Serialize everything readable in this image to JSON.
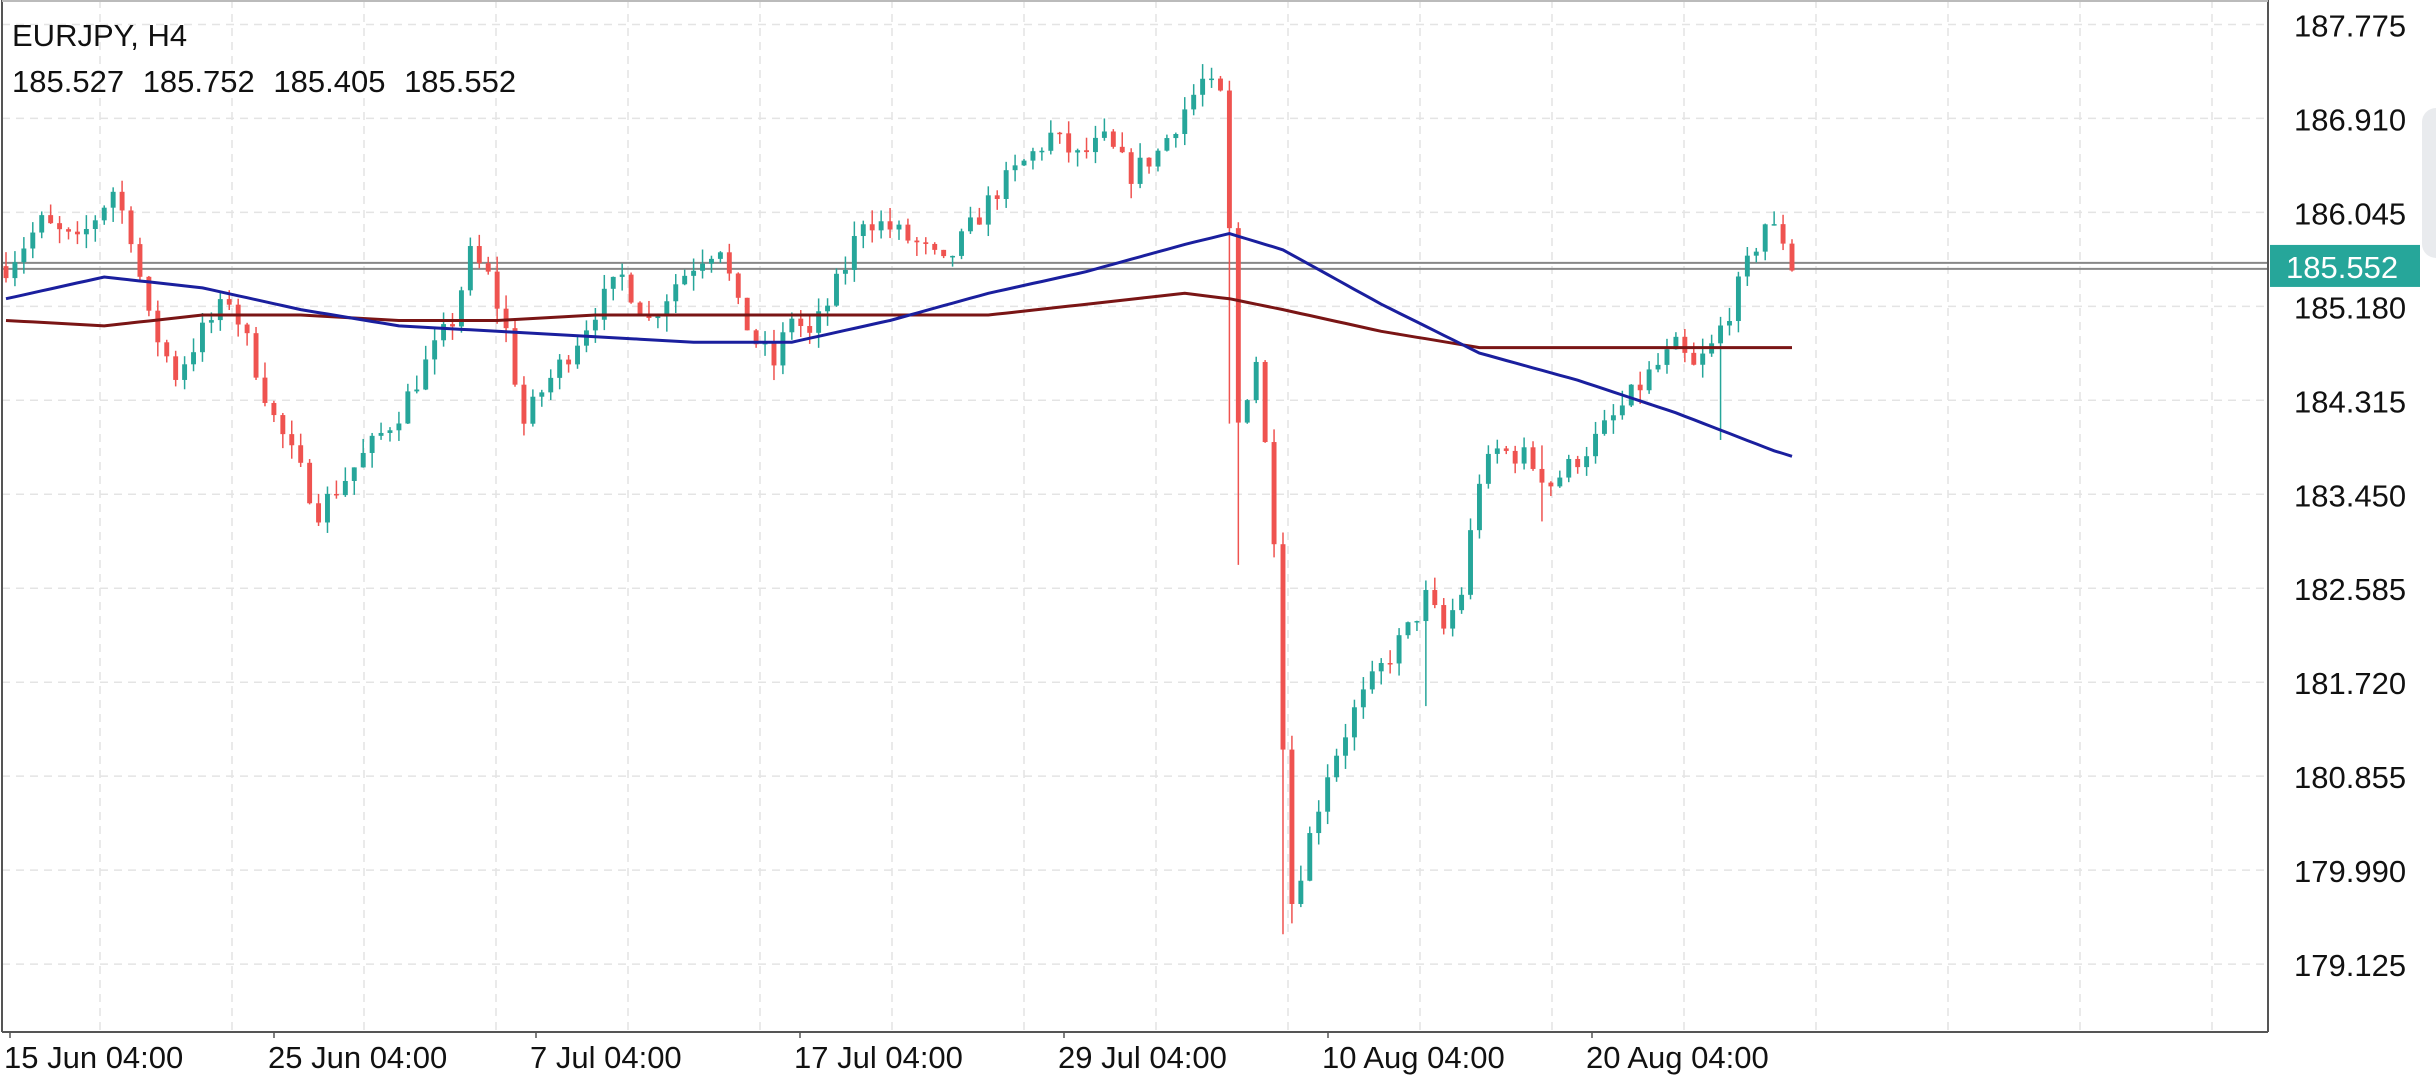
{
  "header": {
    "symbol": "EURJPY, H4",
    "ohlc": {
      "open": "185.527",
      "high": "185.752",
      "low": "185.405",
      "close": "185.552"
    }
  },
  "current_price": {
    "label": "185.552",
    "value": 185.552,
    "color": "#26a69a"
  },
  "colors": {
    "bull": "#26a69a",
    "bear": "#ef5350",
    "ma_fast": "#1a1f9e",
    "ma_slow": "#7a1515",
    "grid": "#e4e4e4",
    "axis": "#555555",
    "price_line": "#888888"
  },
  "chart_data": {
    "type": "candlestick",
    "symbol": "EURJPY",
    "timeframe": "H4",
    "y_range": [
      178.5,
      188.0
    ],
    "y_ticks": [
      187.775,
      186.91,
      186.045,
      185.18,
      184.315,
      183.45,
      182.585,
      181.72,
      180.855,
      179.99,
      179.125
    ],
    "y_tick_labels": [
      "187.775",
      "186.910",
      "186.045",
      "185.180",
      "184.315",
      "183.450",
      "182.585",
      "181.720",
      "180.855",
      "179.990",
      "179.125"
    ],
    "x_tick_labels": [
      "15 Jun 04:00",
      "25 Jun 04:00",
      "7 Jul 04:00",
      "17 Jul 04:00",
      "29 Jul 04:00",
      "10 Aug 04:00",
      "20 Aug 04:00"
    ],
    "price_path": [
      [
        0,
        185.55
      ],
      [
        4,
        185.95
      ],
      [
        8,
        185.75
      ],
      [
        12,
        186.25
      ],
      [
        14,
        185.85
      ],
      [
        16,
        185.05
      ],
      [
        19,
        184.55
      ],
      [
        22,
        184.95
      ],
      [
        25,
        185.25
      ],
      [
        27,
        184.85
      ],
      [
        30,
        184.15
      ],
      [
        33,
        183.65
      ],
      [
        35,
        183.3
      ],
      [
        38,
        183.6
      ],
      [
        41,
        183.9
      ],
      [
        44,
        184.2
      ],
      [
        47,
        184.65
      ],
      [
        50,
        185.05
      ],
      [
        52,
        185.65
      ],
      [
        54,
        185.45
      ],
      [
        56,
        184.95
      ],
      [
        58,
        184.1
      ],
      [
        60,
        184.4
      ],
      [
        63,
        184.75
      ],
      [
        66,
        185.15
      ],
      [
        69,
        185.45
      ],
      [
        72,
        185.05
      ],
      [
        75,
        185.4
      ],
      [
        78,
        185.65
      ],
      [
        80,
        185.75
      ],
      [
        82,
        185.15
      ],
      [
        84,
        184.85
      ],
      [
        86,
        184.65
      ],
      [
        88,
        185.1
      ],
      [
        90,
        184.9
      ],
      [
        92,
        185.2
      ],
      [
        94,
        185.55
      ],
      [
        96,
        186.0
      ],
      [
        99,
        185.9
      ],
      [
        102,
        185.75
      ],
      [
        105,
        185.55
      ],
      [
        108,
        185.9
      ],
      [
        111,
        186.25
      ],
      [
        114,
        186.5
      ],
      [
        117,
        186.75
      ],
      [
        120,
        186.55
      ],
      [
        123,
        186.7
      ],
      [
        126,
        186.4
      ],
      [
        129,
        186.6
      ],
      [
        132,
        187.0
      ],
      [
        134,
        187.25
      ],
      [
        136,
        187.1
      ],
      [
        137,
        185.85
      ],
      [
        138,
        184.1
      ],
      [
        140,
        184.7
      ],
      [
        142,
        183.1
      ],
      [
        143,
        181.2
      ],
      [
        144,
        179.7
      ],
      [
        146,
        180.3
      ],
      [
        148,
        180.9
      ],
      [
        151,
        181.45
      ],
      [
        154,
        181.85
      ],
      [
        157,
        182.2
      ],
      [
        159,
        182.5
      ],
      [
        161,
        182.2
      ],
      [
        163,
        182.55
      ],
      [
        165,
        183.6
      ],
      [
        167,
        183.85
      ],
      [
        170,
        183.8
      ],
      [
        173,
        183.55
      ],
      [
        175,
        183.7
      ],
      [
        178,
        183.95
      ],
      [
        181,
        184.25
      ],
      [
        184,
        184.55
      ],
      [
        187,
        184.8
      ],
      [
        189,
        184.6
      ],
      [
        191,
        184.8
      ],
      [
        193,
        185.15
      ],
      [
        195,
        185.55
      ],
      [
        197,
        185.95
      ],
      [
        199,
        185.8
      ],
      [
        200,
        185.55
      ]
    ],
    "spikes": [
      [
        137,
        184.1,
        185.9
      ],
      [
        138,
        182.8,
        184.9
      ],
      [
        143,
        179.4,
        181.3
      ],
      [
        144,
        179.5,
        180.4
      ],
      [
        159,
        181.5,
        182.6
      ],
      [
        192,
        183.95,
        184.9
      ],
      [
        172,
        183.2,
        183.9
      ]
    ],
    "ma_fast": [
      [
        0,
        185.25
      ],
      [
        11,
        185.45
      ],
      [
        22,
        185.35
      ],
      [
        33,
        185.15
      ],
      [
        44,
        185.0
      ],
      [
        55,
        184.95
      ],
      [
        66,
        184.9
      ],
      [
        77,
        184.85
      ],
      [
        88,
        184.85
      ],
      [
        99,
        185.05
      ],
      [
        110,
        185.3
      ],
      [
        121,
        185.5
      ],
      [
        132,
        185.75
      ],
      [
        137,
        185.85
      ],
      [
        143,
        185.7
      ],
      [
        154,
        185.2
      ],
      [
        165,
        184.75
      ],
      [
        176,
        184.5
      ],
      [
        187,
        184.2
      ],
      [
        198,
        183.85
      ],
      [
        200,
        183.8
      ]
    ],
    "ma_slow": [
      [
        0,
        185.05
      ],
      [
        11,
        185.0
      ],
      [
        22,
        185.1
      ],
      [
        33,
        185.1
      ],
      [
        44,
        185.05
      ],
      [
        55,
        185.05
      ],
      [
        66,
        185.1
      ],
      [
        77,
        185.1
      ],
      [
        88,
        185.1
      ],
      [
        99,
        185.1
      ],
      [
        110,
        185.1
      ],
      [
        121,
        185.2
      ],
      [
        132,
        185.3
      ],
      [
        137,
        185.25
      ],
      [
        143,
        185.15
      ],
      [
        154,
        184.95
      ],
      [
        165,
        184.8
      ],
      [
        176,
        184.8
      ],
      [
        187,
        184.8
      ],
      [
        198,
        184.8
      ],
      [
        200,
        184.8
      ]
    ]
  }
}
